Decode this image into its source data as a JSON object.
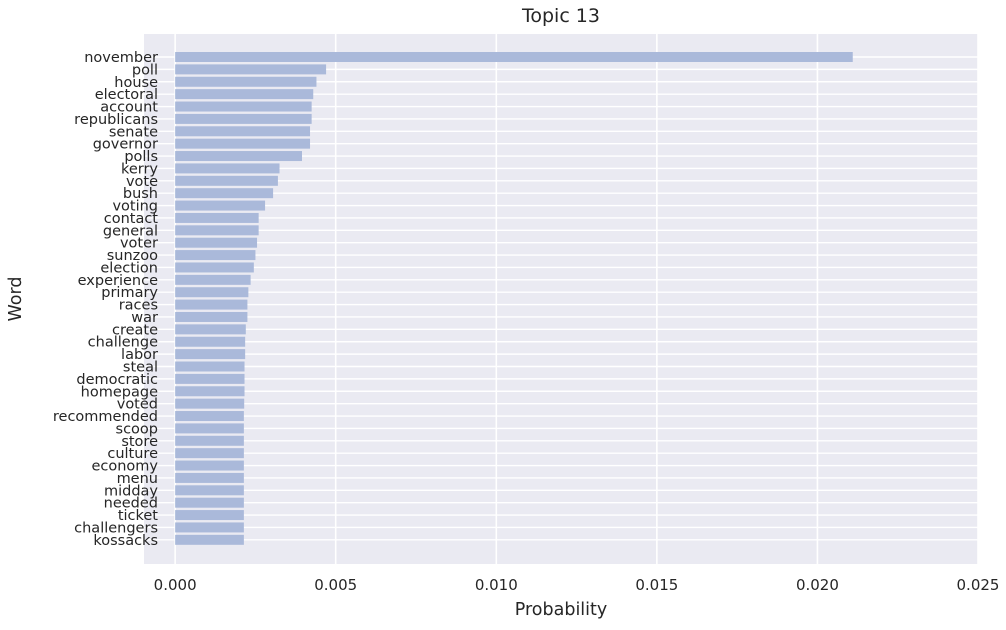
{
  "chart_data": {
    "type": "bar",
    "orientation": "horizontal",
    "title": "Topic 13",
    "xlabel": "Probability",
    "ylabel": "Word",
    "xlim": [
      -0.00097,
      0.025
    ],
    "xticks": [
      "0.000",
      "0.005",
      "0.010",
      "0.015",
      "0.020",
      "0.025"
    ],
    "xtick_values": [
      0,
      0.005,
      0.01,
      0.015,
      0.02,
      0.025
    ],
    "grid": true,
    "background": "#eaeaf2",
    "bar_color": "#aab9da",
    "categories": [
      "november",
      "poll",
      "house",
      "electoral",
      "account",
      "republicans",
      "senate",
      "governor",
      "polls",
      "kerry",
      "vote",
      "bush",
      "voting",
      "contact",
      "general",
      "voter",
      "sunzoo",
      "election",
      "experience",
      "primary",
      "races",
      "war",
      "create",
      "challenge",
      "labor",
      "steal",
      "democratic",
      "homepage",
      "voted",
      "recommended",
      "scoop",
      "store",
      "culture",
      "economy",
      "menu",
      "midday",
      "needed",
      "ticket",
      "challengers",
      "kossacks"
    ],
    "values": [
      0.0211,
      0.0047,
      0.0044,
      0.0043,
      0.00425,
      0.00425,
      0.0042,
      0.0042,
      0.00395,
      0.00325,
      0.0032,
      0.00305,
      0.0028,
      0.0026,
      0.0026,
      0.00255,
      0.0025,
      0.00245,
      0.00235,
      0.00228,
      0.00225,
      0.00225,
      0.0022,
      0.00218,
      0.00218,
      0.00216,
      0.00216,
      0.00216,
      0.00215,
      0.00214,
      0.00214,
      0.00214,
      0.00214,
      0.00214,
      0.00214,
      0.00214,
      0.00214,
      0.00214,
      0.00214,
      0.00214
    ]
  }
}
